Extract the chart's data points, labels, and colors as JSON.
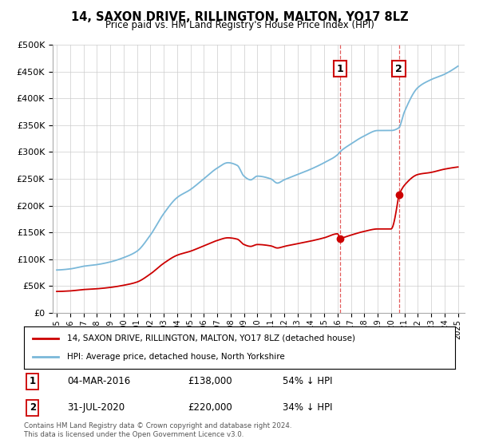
{
  "title": "14, SAXON DRIVE, RILLINGTON, MALTON, YO17 8LZ",
  "subtitle": "Price paid vs. HM Land Registry's House Price Index (HPI)",
  "ylim": [
    0,
    500000
  ],
  "yticks": [
    0,
    50000,
    100000,
    150000,
    200000,
    250000,
    300000,
    350000,
    400000,
    450000,
    500000
  ],
  "ytick_labels": [
    "£0",
    "£50K",
    "£100K",
    "£150K",
    "£200K",
    "£250K",
    "£300K",
    "£350K",
    "£400K",
    "£450K",
    "£500K"
  ],
  "hpi_color": "#7ab8d9",
  "price_color": "#cc0000",
  "vline1_x": 2016.17,
  "vline2_x": 2020.58,
  "marker1_price": 138000,
  "marker2_price": 220000,
  "legend1_label": "14, SAXON DRIVE, RILLINGTON, MALTON, YO17 8LZ (detached house)",
  "legend2_label": "HPI: Average price, detached house, North Yorkshire",
  "table_row1": [
    "1",
    "04-MAR-2016",
    "£138,000",
    "54% ↓ HPI"
  ],
  "table_row2": [
    "2",
    "31-JUL-2020",
    "£220,000",
    "34% ↓ HPI"
  ],
  "footnote": "Contains HM Land Registry data © Crown copyright and database right 2024.\nThis data is licensed under the Open Government Licence v3.0.",
  "background_color": "#ffffff",
  "grid_color": "#cccccc",
  "xlim_left": 1994.7,
  "xlim_right": 2025.5
}
